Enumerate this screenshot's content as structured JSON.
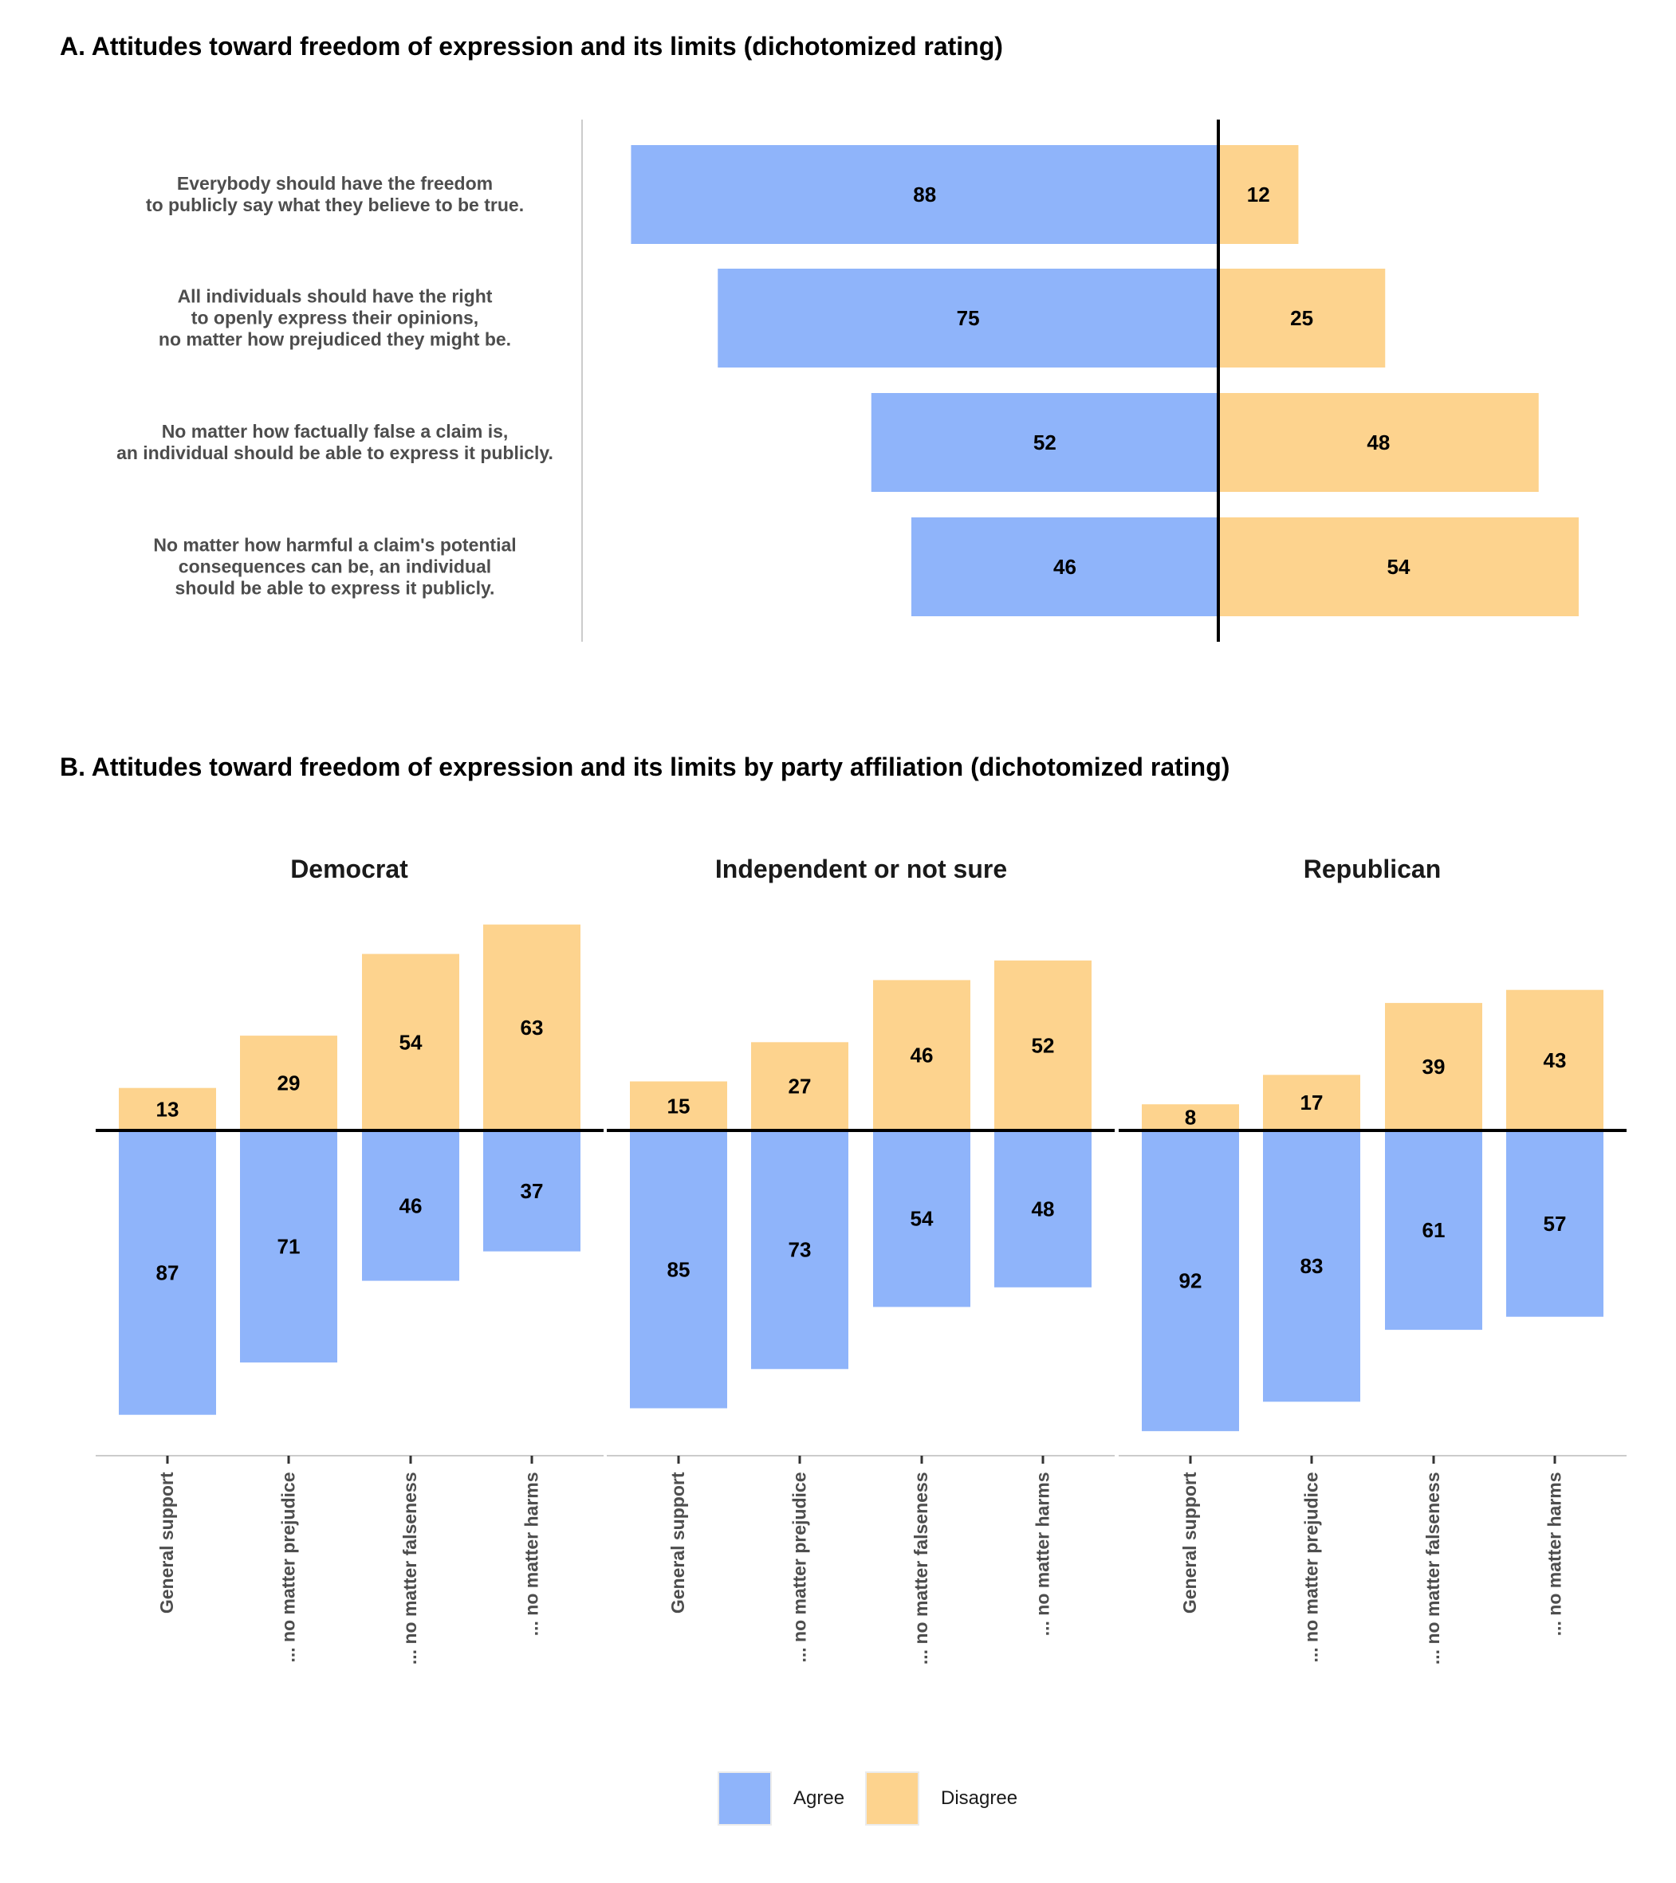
{
  "colors": {
    "agree": "#8fb4fa",
    "disagree": "#fdd38e"
  },
  "chart_data": [
    {
      "type": "bar",
      "orientation": "horizontal-diverging",
      "title": "A. Attitudes toward freedom of expression and its limits (dichotomized rating)",
      "categories": [
        "Everybody should have the freedom\nto publicly say what they believe to be true.",
        "All individuals should have the right\nto openly express their opinions,\nno matter how prejudiced they might be.",
        "No matter how factually false a claim is,\nan individual should be able to express it publicly.",
        "No matter how harmful a claim's potential\nconsequences can be, an individual\nshould be able to express it publicly."
      ],
      "series": [
        {
          "name": "Agree",
          "values": [
            88,
            75,
            52,
            46
          ]
        },
        {
          "name": "Disagree",
          "values": [
            12,
            25,
            48,
            54
          ]
        }
      ],
      "xlim": [
        -88,
        54
      ],
      "grid": false
    },
    {
      "type": "bar",
      "orientation": "vertical-diverging",
      "title": "B. Attitudes toward freedom of expression and its limits by party affiliation (dichotomized rating)",
      "facets": [
        {
          "name": "Democrat",
          "categories": [
            "General support",
            "... no matter prejudice",
            "... no matter falseness",
            "... no matter harms"
          ],
          "agree": [
            87,
            71,
            46,
            37
          ],
          "disagree": [
            13,
            29,
            54,
            63
          ]
        },
        {
          "name": "Independent or not sure",
          "categories": [
            "General support",
            "... no matter prejudice",
            "... no matter falseness",
            "... no matter harms"
          ],
          "agree": [
            85,
            73,
            54,
            48
          ],
          "disagree": [
            15,
            27,
            46,
            52
          ]
        },
        {
          "name": "Republican",
          "categories": [
            "General support",
            "... no matter prejudice",
            "... no matter falseness",
            "... no matter harms"
          ],
          "agree": [
            92,
            83,
            61,
            57
          ],
          "disagree": [
            8,
            17,
            39,
            43
          ]
        }
      ],
      "ylim": [
        -100,
        63
      ],
      "grid": false,
      "legend": {
        "position": "bottom",
        "entries": [
          "Agree",
          "Disagree"
        ]
      }
    }
  ]
}
